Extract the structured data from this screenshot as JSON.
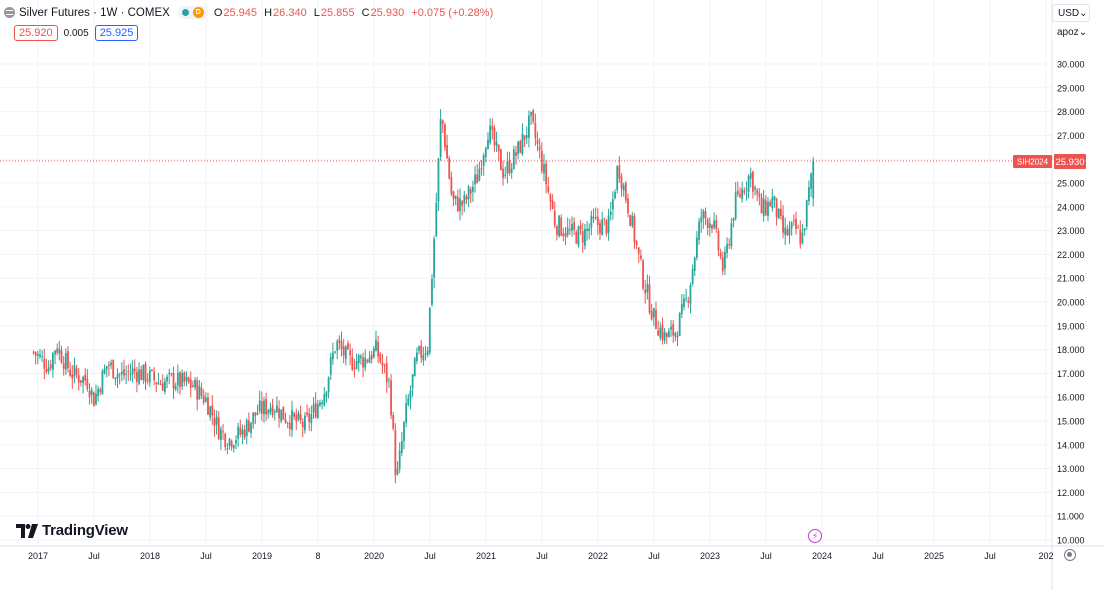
{
  "header": {
    "title": "Silver Futures · 1W · COMEX",
    "status_letter": "D",
    "ohlc": {
      "open_label": "O",
      "open": "25.945",
      "high_label": "H",
      "high": "26.340",
      "low_label": "L",
      "low": "25.855",
      "close_label": "C",
      "close": "25.930",
      "change": "+0.075 (+0.28%)"
    },
    "bid": "25.920",
    "spread": "0.005",
    "ask": "25.925"
  },
  "toolbar": {
    "currency": "USD",
    "unit": "apoz",
    "chevron": "⌄"
  },
  "branding": {
    "name": "TradingView"
  },
  "colors": {
    "up": "#26a69a",
    "down": "#ef5350",
    "grid": "#f0f3fa",
    "axis_text": "#131722",
    "price_line": "#ef5350"
  },
  "price_label": {
    "symbol": "SIH2024",
    "value": "25.930"
  },
  "chart_data": {
    "type": "candlestick",
    "interval": "1W",
    "y_axis_ticks": [
      "10.000",
      "11.000",
      "12.000",
      "13.000",
      "14.000",
      "15.000",
      "16.000",
      "17.000",
      "18.000",
      "19.000",
      "20.000",
      "21.000",
      "22.000",
      "23.000",
      "24.000",
      "25.000",
      "26.000",
      "27.000",
      "28.000",
      "29.000",
      "30.000"
    ],
    "ylim": [
      10,
      31
    ],
    "x_axis_ticks": [
      "2017",
      "Jul",
      "2018",
      "Jul",
      "2019",
      "8",
      "2020",
      "Jul",
      "2021",
      "Jul",
      "2022",
      "Jul",
      "2023",
      "Jul",
      "2024",
      "Jul",
      "2025",
      "Jul",
      "202"
    ],
    "grid": true,
    "last_price": 25.93,
    "series_closes": [
      {
        "t": 2016.96,
        "v": 17.9
      },
      {
        "t": 2017.1,
        "v": 17.3
      },
      {
        "t": 2017.16,
        "v": 18.2
      },
      {
        "t": 2017.3,
        "v": 17.0
      },
      {
        "t": 2017.44,
        "v": 16.7
      },
      {
        "t": 2017.5,
        "v": 15.9
      },
      {
        "t": 2017.62,
        "v": 17.4
      },
      {
        "t": 2017.74,
        "v": 16.9
      },
      {
        "t": 2017.86,
        "v": 17.1
      },
      {
        "t": 2017.97,
        "v": 16.9
      },
      {
        "t": 2018.1,
        "v": 16.6
      },
      {
        "t": 2018.2,
        "v": 16.7
      },
      {
        "t": 2018.38,
        "v": 16.5
      },
      {
        "t": 2018.5,
        "v": 15.9
      },
      {
        "t": 2018.62,
        "v": 14.6
      },
      {
        "t": 2018.7,
        "v": 14.2
      },
      {
        "t": 2018.82,
        "v": 14.5
      },
      {
        "t": 2018.96,
        "v": 15.4
      },
      {
        "t": 2019.1,
        "v": 15.7
      },
      {
        "t": 2019.2,
        "v": 15.2
      },
      {
        "t": 2019.38,
        "v": 14.8
      },
      {
        "t": 2019.45,
        "v": 15.3
      },
      {
        "t": 2019.56,
        "v": 16.3
      },
      {
        "t": 2019.66,
        "v": 18.3
      },
      {
        "t": 2019.78,
        "v": 17.5
      },
      {
        "t": 2019.92,
        "v": 17.6
      },
      {
        "t": 2020.02,
        "v": 18.0
      },
      {
        "t": 2020.14,
        "v": 16.5
      },
      {
        "t": 2020.2,
        "v": 12.4
      },
      {
        "t": 2020.28,
        "v": 15.2
      },
      {
        "t": 2020.38,
        "v": 17.6
      },
      {
        "t": 2020.48,
        "v": 18.2
      },
      {
        "t": 2020.56,
        "v": 24.5
      },
      {
        "t": 2020.6,
        "v": 28.0
      },
      {
        "t": 2020.7,
        "v": 24.2
      },
      {
        "t": 2020.8,
        "v": 24.1
      },
      {
        "t": 2020.92,
        "v": 25.2
      },
      {
        "t": 2021.02,
        "v": 27.3
      },
      {
        "t": 2021.16,
        "v": 25.4
      },
      {
        "t": 2021.28,
        "v": 26.3
      },
      {
        "t": 2021.4,
        "v": 27.6
      },
      {
        "t": 2021.5,
        "v": 25.8
      },
      {
        "t": 2021.62,
        "v": 23.3
      },
      {
        "t": 2021.74,
        "v": 22.9
      },
      {
        "t": 2021.86,
        "v": 22.8
      },
      {
        "t": 2021.96,
        "v": 23.3
      },
      {
        "t": 2022.1,
        "v": 23.2
      },
      {
        "t": 2022.18,
        "v": 25.8
      },
      {
        "t": 2022.28,
        "v": 23.8
      },
      {
        "t": 2022.4,
        "v": 21.0
      },
      {
        "t": 2022.5,
        "v": 19.3
      },
      {
        "t": 2022.6,
        "v": 18.5
      },
      {
        "t": 2022.7,
        "v": 18.8
      },
      {
        "t": 2022.8,
        "v": 20.2
      },
      {
        "t": 2022.92,
        "v": 23.6
      },
      {
        "t": 2023.02,
        "v": 23.4
      },
      {
        "t": 2023.12,
        "v": 21.3
      },
      {
        "t": 2023.22,
        "v": 24.1
      },
      {
        "t": 2023.36,
        "v": 25.4
      },
      {
        "t": 2023.46,
        "v": 23.8
      },
      {
        "t": 2023.56,
        "v": 24.3
      },
      {
        "t": 2023.66,
        "v": 22.8
      },
      {
        "t": 2023.76,
        "v": 23.1
      },
      {
        "t": 2023.82,
        "v": 22.6
      },
      {
        "t": 2023.88,
        "v": 24.5
      },
      {
        "t": 2023.93,
        "v": 25.93
      }
    ]
  }
}
